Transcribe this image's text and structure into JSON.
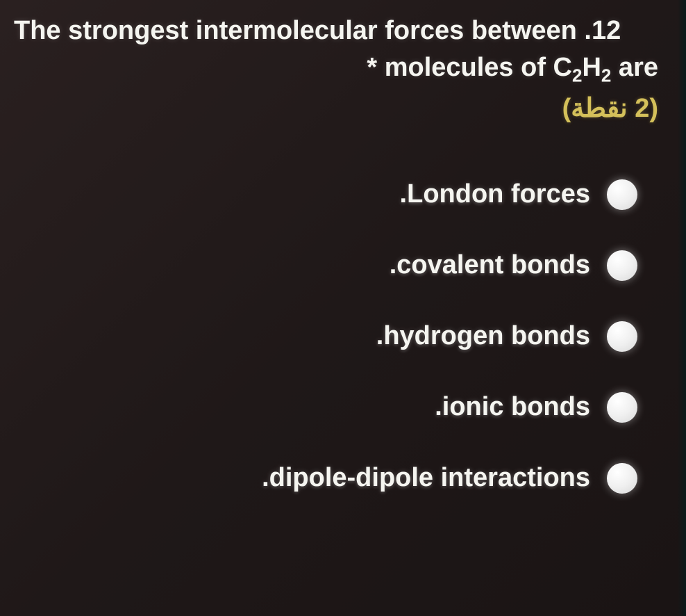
{
  "question": {
    "number": ".12",
    "line1_text": "The strongest intermolecular forces between .12",
    "line2_prefix": "* molecules of C",
    "sub1": "2",
    "mid": "H",
    "sub2": "2",
    "line2_suffix": " are",
    "points_text": "(2 نقطة)"
  },
  "options": [
    {
      "label": ".London forces"
    },
    {
      "label": ".covalent bonds"
    },
    {
      "label": ".hydrogen bonds"
    },
    {
      "label": ".ionic bonds"
    },
    {
      "label": ".dipole-dipole interactions"
    }
  ],
  "colors": {
    "background": "#1f1818",
    "text": "#f5f5f0",
    "points": "#d4c05a",
    "radio": "#f0f0f0"
  },
  "typography": {
    "question_fontsize": 38,
    "option_fontsize": 38,
    "points_fontsize": 38,
    "font_weight": "bold"
  }
}
